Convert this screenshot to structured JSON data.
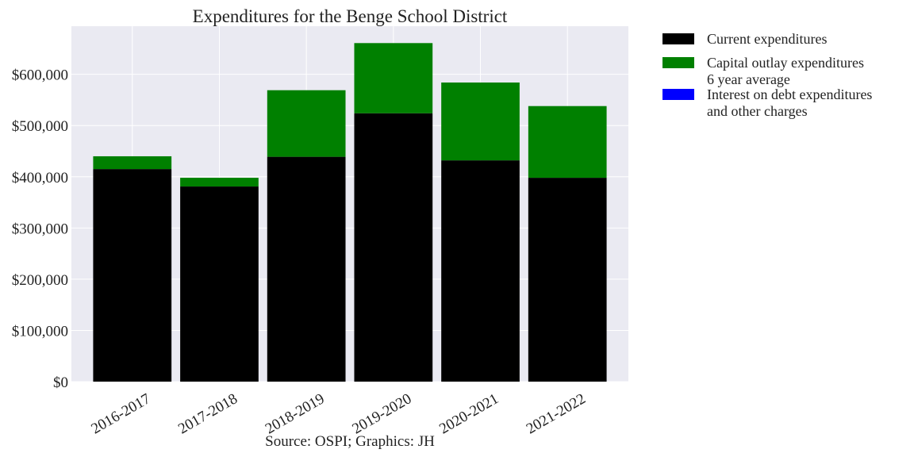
{
  "chart_data": {
    "type": "bar",
    "stacked": true,
    "title": "Expenditures for the Benge School District",
    "source": "Source: OSPI; Graphics: JH",
    "xlabel": "",
    "ylabel": "",
    "categories": [
      "2016-2017",
      "2017-2018",
      "2018-2019",
      "2019-2020",
      "2020-2021",
      "2021-2022"
    ],
    "series": [
      {
        "name": "Current expenditures",
        "color": "#000000",
        "values": [
          415000,
          381000,
          439000,
          524000,
          432000,
          398000
        ]
      },
      {
        "name": "Capital outlay expenditures",
        "color": "#008000",
        "values": [
          25000,
          17000,
          130000,
          137000,
          152000,
          140000
        ]
      },
      {
        "name": "Interest on debt expenditures and other charges",
        "color": "#0000ff",
        "values": [
          0,
          0,
          0,
          0,
          0,
          0
        ]
      }
    ],
    "legend": {
      "placement": "outside-top-right",
      "entries": [
        {
          "color": "#000000",
          "lines": [
            "Current expenditures"
          ]
        },
        {
          "color": "#008000",
          "lines": [
            "Capital outlay expenditures",
            "6 year average"
          ]
        },
        {
          "color": "#0000ff",
          "lines": [
            "Interest on debt expenditures",
            "and other charges"
          ]
        }
      ]
    },
    "yticks": [
      0,
      100000,
      200000,
      300000,
      400000,
      500000,
      600000
    ],
    "ytick_labels": [
      "$0",
      "$100,000",
      "$200,000",
      "$300,000",
      "$400,000",
      "$500,000",
      "$600,000"
    ],
    "ylim": [
      0,
      694000
    ],
    "grid": true,
    "plot_background": "#eaeaf2",
    "grid_color": "#ffffff"
  }
}
